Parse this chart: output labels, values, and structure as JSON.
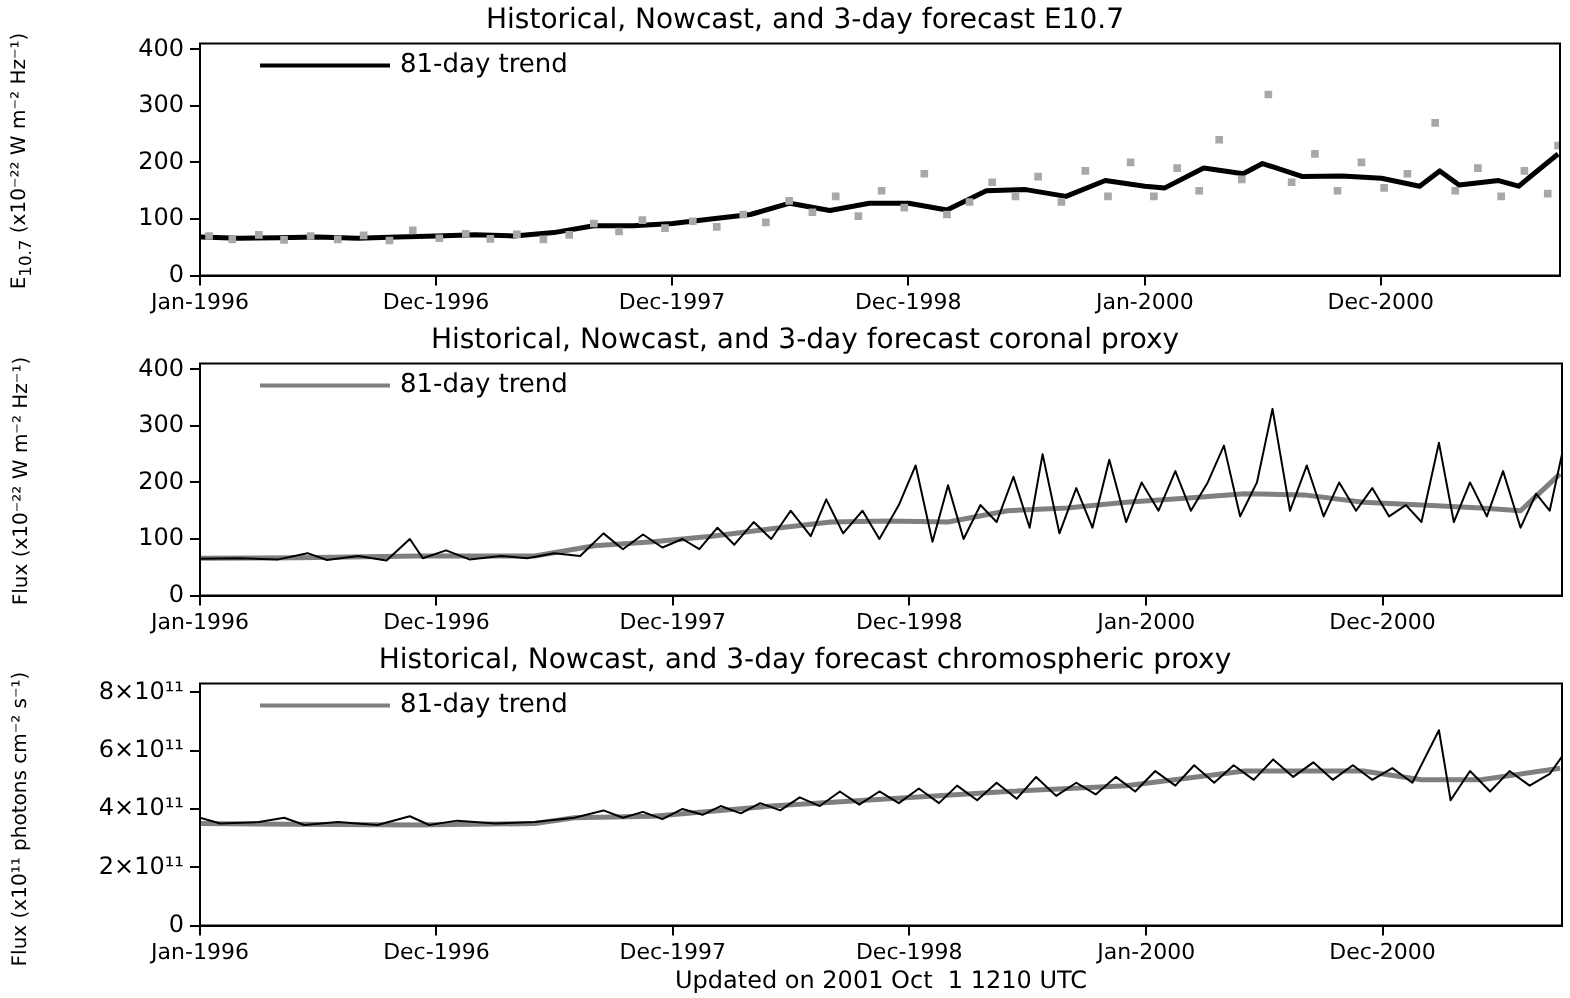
{
  "chart_data": [
    {
      "type": "line",
      "title": "Historical, Nowcast, and 3-day forecast E10.7",
      "ylabel": "E$_{10.7}$ (x10⁻²² W m⁻² Hz⁻¹)",
      "legend": "top left",
      "xlim": [
        "1996-01-01",
        "2001-10-04"
      ],
      "xticks": [
        {
          "value": "1996-01-01",
          "label": "Jan-1996"
        },
        {
          "value": "1996-12-31",
          "label": "Dec-1996"
        },
        {
          "value": "1997-12-31",
          "label": "Dec-1997"
        },
        {
          "value": "1998-12-31",
          "label": "Dec-1998"
        },
        {
          "value": "2000-01-01",
          "label": "Jan-2000"
        },
        {
          "value": "2000-12-31",
          "label": "Dec-2000"
        }
      ],
      "ylim": [
        0,
        410
      ],
      "yticks": [
        0,
        100,
        200,
        300,
        400
      ],
      "series": [
        {
          "type": "scatter",
          "marker": "square",
          "color": "#a8a8a8",
          "x": [
            "1996-01-15",
            "1996-02-20",
            "1996-04-01",
            "1996-05-10",
            "1996-06-20",
            "1996-08-01",
            "1996-09-10",
            "1996-10-20",
            "1996-11-25",
            "1997-01-05",
            "1997-02-15",
            "1997-03-25",
            "1997-05-05",
            "1997-06-15",
            "1997-07-25",
            "1997-09-01",
            "1997-10-10",
            "1997-11-15",
            "1997-12-20",
            "1998-02-01",
            "1998-03-10",
            "1998-04-20",
            "1998-05-25",
            "1998-06-30",
            "1998-08-05",
            "1998-09-10",
            "1998-10-15",
            "1998-11-20",
            "1998-12-25",
            "1999-01-25",
            "1999-03-01",
            "1999-04-05",
            "1999-05-10",
            "1999-06-15",
            "1999-07-20",
            "1999-08-25",
            "1999-10-01",
            "1999-11-05",
            "1999-12-10",
            "2000-01-15",
            "2000-02-20",
            "2000-03-25",
            "2000-04-25",
            "2000-05-30",
            "2000-07-10",
            "2000-08-15",
            "2000-09-20",
            "2000-10-25",
            "2000-12-01",
            "2001-01-05",
            "2001-02-10",
            "2001-03-25",
            "2001-04-25",
            "2001-05-30",
            "2001-07-05",
            "2001-08-10",
            "2001-09-15",
            "2001-10-01"
          ],
          "values": [
            70,
            64,
            72,
            63,
            70,
            64,
            71,
            62,
            80,
            66,
            74,
            65,
            73,
            64,
            72,
            92,
            78,
            98,
            84,
            96,
            86,
            108,
            94,
            132,
            112,
            140,
            105,
            150,
            120,
            180,
            108,
            130,
            165,
            140,
            175,
            130,
            185,
            140,
            200,
            140,
            190,
            150,
            240,
            170,
            320,
            165,
            215,
            150,
            200,
            155,
            180,
            270,
            150,
            190,
            140,
            185,
            145,
            230
          ]
        },
        {
          "type": "line",
          "name": "81-day trend",
          "color": "#000000",
          "x": [
            "1996-01",
            "1996-03",
            "1996-05",
            "1996-07",
            "1996-09",
            "1996-11",
            "1997-01",
            "1997-03",
            "1997-05",
            "1997-07",
            "1997-09",
            "1997-11",
            "1998-01",
            "1998-03",
            "1998-05",
            "1998-07",
            "1998-09",
            "1998-11",
            "1999-01",
            "1999-03",
            "1999-05",
            "1999-07",
            "1999-09",
            "1999-11",
            "2000-01",
            "2000-02",
            "2000-04",
            "2000-06",
            "2000-07",
            "2000-09",
            "2000-11",
            "2001-01",
            "2001-03",
            "2001-04",
            "2001-05",
            "2001-07",
            "2001-08",
            "2001-10"
          ],
          "values": [
            68,
            66,
            67,
            68,
            66,
            68,
            70,
            72,
            70,
            76,
            88,
            88,
            92,
            100,
            108,
            128,
            115,
            128,
            128,
            116,
            150,
            152,
            140,
            168,
            158,
            155,
            190,
            180,
            198,
            175,
            176,
            172,
            158,
            185,
            160,
            168,
            158,
            215
          ]
        }
      ]
    },
    {
      "type": "line",
      "title": "Historical, Nowcast, and 3-day forecast coronal proxy",
      "ylabel": "Flux (x10⁻²² W m⁻² Hz⁻¹)",
      "legend": "top left",
      "xlim": [
        "1996-01-01",
        "2001-10-04"
      ],
      "xticks": [
        {
          "value": "1996-01-01",
          "label": "Jan-1996"
        },
        {
          "value": "1996-12-31",
          "label": "Dec-1996"
        },
        {
          "value": "1997-12-31",
          "label": "Dec-1997"
        },
        {
          "value": "1998-12-31",
          "label": "Dec-1998"
        },
        {
          "value": "2000-01-01",
          "label": "Jan-2000"
        },
        {
          "value": "2000-12-31",
          "label": "Dec-2000"
        }
      ],
      "ylim": [
        0,
        410
      ],
      "yticks": [
        0,
        100,
        200,
        300,
        400
      ],
      "series": [
        {
          "type": "line",
          "color": "#000000",
          "x": [
            "1996-01-01",
            "1996-03-01",
            "1996-05-01",
            "1996-06-15",
            "1996-07-15",
            "1996-09-01",
            "1996-10-15",
            "1996-11-20",
            "1996-12-10",
            "1997-01-15",
            "1997-02-20",
            "1997-04-10",
            "1997-05-20",
            "1997-07-01",
            "1997-08-10",
            "1997-09-15",
            "1997-10-15",
            "1997-11-15",
            "1997-12-15",
            "1998-01-15",
            "1998-02-10",
            "1998-03-10",
            "1998-04-05",
            "1998-05-05",
            "1998-06-01",
            "1998-07-01",
            "1998-08-01",
            "1998-08-25",
            "1998-09-20",
            "1998-10-20",
            "1998-11-15",
            "1998-12-15",
            "1999-01-10",
            "1999-02-05",
            "1999-03-01",
            "1999-03-25",
            "1999-04-20",
            "1999-05-15",
            "1999-06-10",
            "1999-07-05",
            "1999-07-25",
            "1999-08-20",
            "1999-09-15",
            "1999-10-10",
            "1999-11-05",
            "1999-12-01",
            "1999-12-25",
            "2000-01-20",
            "2000-02-15",
            "2000-03-10",
            "2000-04-05",
            "2000-04-30",
            "2000-05-25",
            "2000-06-20",
            "2000-07-14",
            "2000-08-10",
            "2000-09-05",
            "2000-10-01",
            "2000-10-25",
            "2000-11-20",
            "2000-12-15",
            "2001-01-10",
            "2001-02-05",
            "2001-03-01",
            "2001-03-28",
            "2001-04-20",
            "2001-05-15",
            "2001-06-10",
            "2001-07-05",
            "2001-08-01",
            "2001-08-25",
            "2001-09-15",
            "2001-10-04"
          ],
          "values": [
            65,
            66,
            64,
            75,
            63,
            70,
            62,
            100,
            66,
            80,
            64,
            70,
            66,
            75,
            70,
            110,
            82,
            108,
            85,
            100,
            82,
            120,
            90,
            130,
            100,
            150,
            105,
            170,
            110,
            150,
            100,
            160,
            230,
            95,
            195,
            100,
            160,
            130,
            210,
            120,
            250,
            110,
            190,
            120,
            240,
            130,
            200,
            150,
            220,
            150,
            200,
            265,
            140,
            200,
            330,
            150,
            230,
            140,
            200,
            150,
            190,
            140,
            160,
            130,
            270,
            130,
            200,
            140,
            220,
            120,
            180,
            150,
            250
          ]
        },
        {
          "type": "line",
          "name": "81-day trend",
          "color": "#7f7f7f",
          "x": [
            "1996-01",
            "1996-06",
            "1996-12",
            "1997-06",
            "1997-09",
            "1997-12",
            "1998-03",
            "1998-06",
            "1998-09",
            "1998-12",
            "1999-03",
            "1999-06",
            "1999-09",
            "1999-12",
            "2000-03",
            "2000-06",
            "2000-09",
            "2000-12",
            "2001-03",
            "2001-06",
            "2001-08",
            "2001-10"
          ],
          "values": [
            66,
            67,
            70,
            70,
            88,
            95,
            105,
            118,
            130,
            132,
            130,
            150,
            155,
            165,
            172,
            180,
            178,
            165,
            160,
            155,
            150,
            215
          ]
        }
      ]
    },
    {
      "type": "line",
      "title": "Historical, Nowcast, and 3-day forecast chromospheric proxy",
      "ylabel": "Flux (x10¹¹ photons cm⁻² s⁻¹)",
      "legend": "top left",
      "annotations": [
        "Updated on 2001 Oct  1 1210 UTC"
      ],
      "xlim": [
        "1996-01-01",
        "2001-10-04"
      ],
      "xticks": [
        {
          "value": "1996-01-01",
          "label": "Jan-1996"
        },
        {
          "value": "1996-12-31",
          "label": "Dec-1996"
        },
        {
          "value": "1997-12-31",
          "label": "Dec-1997"
        },
        {
          "value": "1998-12-31",
          "label": "Dec-1998"
        },
        {
          "value": "2000-01-01",
          "label": "Jan-2000"
        },
        {
          "value": "2000-12-31",
          "label": "Dec-2000"
        }
      ],
      "ylim": [
        0,
        830000000000.0
      ],
      "yticks": [
        0,
        {
          "value": 200000000000.0,
          "label": "2×10¹¹"
        },
        {
          "value": 400000000000.0,
          "label": "4×10¹¹"
        },
        {
          "value": 600000000000.0,
          "label": "6×10¹¹"
        },
        {
          "value": 800000000000.0,
          "label": "8×10¹¹"
        }
      ],
      "series": [
        {
          "type": "line",
          "color": "#000000",
          "x": [
            "1996-01-01",
            "1996-02-01",
            "1996-04-01",
            "1996-05-10",
            "1996-06-10",
            "1996-08-01",
            "1996-10-01",
            "1996-11-20",
            "1996-12-20",
            "1997-02-01",
            "1997-04-01",
            "1997-06-01",
            "1997-08-01",
            "1997-09-15",
            "1997-10-15",
            "1997-11-15",
            "1997-12-15",
            "1998-01-15",
            "1998-02-15",
            "1998-03-15",
            "1998-04-15",
            "1998-05-15",
            "1998-06-15",
            "1998-07-15",
            "1998-08-15",
            "1998-09-15",
            "1998-10-15",
            "1998-11-15",
            "1998-12-15",
            "1999-01-15",
            "1999-02-15",
            "1999-03-15",
            "1999-04-15",
            "1999-05-15",
            "1999-06-15",
            "1999-07-15",
            "1999-08-15",
            "1999-09-15",
            "1999-10-15",
            "1999-11-15",
            "1999-12-15",
            "2000-01-15",
            "2000-02-15",
            "2000-03-15",
            "2000-04-15",
            "2000-05-15",
            "2000-06-15",
            "2000-07-15",
            "2000-08-15",
            "2000-09-15",
            "2000-10-15",
            "2000-11-15",
            "2000-12-15",
            "2001-01-15",
            "2001-02-15",
            "2001-03-28",
            "2001-04-15",
            "2001-05-15",
            "2001-06-15",
            "2001-07-15",
            "2001-08-15",
            "2001-09-15",
            "2001-10-04"
          ],
          "values": [
            370000000000.0,
            350000000000.0,
            355000000000.0,
            370000000000.0,
            345000000000.0,
            355000000000.0,
            345000000000.0,
            375000000000.0,
            345000000000.0,
            360000000000.0,
            350000000000.0,
            355000000000.0,
            370000000000.0,
            395000000000.0,
            370000000000.0,
            390000000000.0,
            365000000000.0,
            400000000000.0,
            380000000000.0,
            410000000000.0,
            385000000000.0,
            420000000000.0,
            395000000000.0,
            440000000000.0,
            410000000000.0,
            460000000000.0,
            415000000000.0,
            460000000000.0,
            420000000000.0,
            470000000000.0,
            420000000000.0,
            480000000000.0,
            430000000000.0,
            490000000000.0,
            435000000000.0,
            510000000000.0,
            445000000000.0,
            490000000000.0,
            450000000000.0,
            510000000000.0,
            460000000000.0,
            530000000000.0,
            480000000000.0,
            550000000000.0,
            490000000000.0,
            550000000000.0,
            500000000000.0,
            570000000000.0,
            510000000000.0,
            560000000000.0,
            500000000000.0,
            550000000000.0,
            500000000000.0,
            540000000000.0,
            490000000000.0,
            670000000000.0,
            430000000000.0,
            530000000000.0,
            460000000000.0,
            530000000000.0,
            480000000000.0,
            520000000000.0,
            580000000000.0
          ]
        },
        {
          "type": "line",
          "name": "81-day trend",
          "color": "#7f7f7f",
          "x": [
            "1996-01",
            "1996-12",
            "1997-06",
            "1997-08",
            "1997-12",
            "1998-06",
            "1998-12",
            "1999-06",
            "1999-12",
            "2000-06",
            "2000-12",
            "2001-03",
            "2001-06",
            "2001-10"
          ],
          "values": [
            350000000000.0,
            345000000000.0,
            350000000000.0,
            370000000000.0,
            375000000000.0,
            410000000000.0,
            435000000000.0,
            460000000000.0,
            480000000000.0,
            530000000000.0,
            530000000000.0,
            500000000000.0,
            500000000000.0,
            540000000000.0
          ]
        }
      ]
    }
  ]
}
